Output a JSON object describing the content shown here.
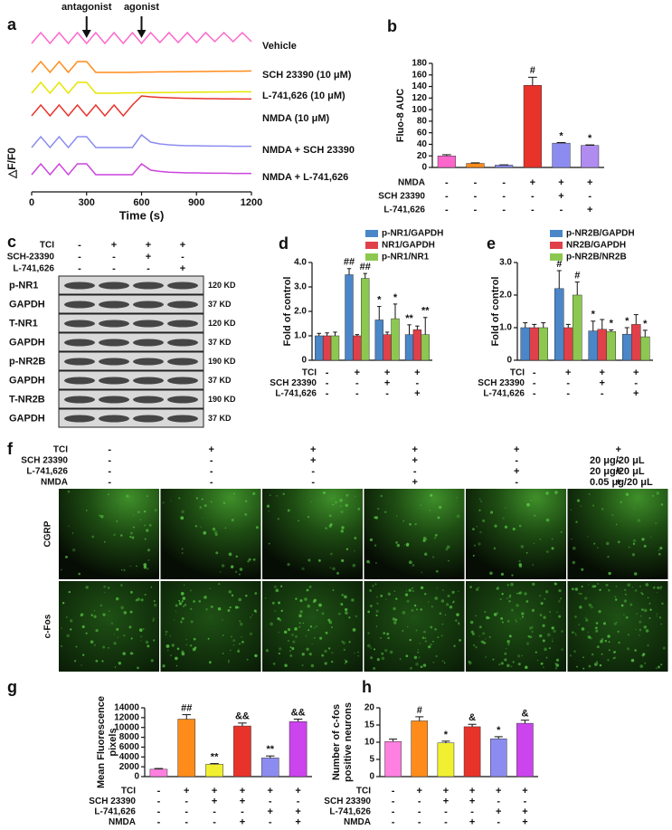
{
  "chart_data": [
    {
      "type": "line",
      "panel": "a",
      "x_label": "Time (s)",
      "y_label": "△F/F0",
      "xlim": [
        0,
        1200
      ],
      "xticks": [
        0,
        300,
        600,
        900,
        1200
      ],
      "arrows": [
        {
          "label": "antagonist",
          "x": 300
        },
        {
          "label": "agonist",
          "x": 600
        }
      ],
      "x": [
        0,
        50,
        100,
        150,
        200,
        250,
        300,
        350,
        400,
        450,
        500,
        550,
        600,
        650,
        700,
        750,
        800,
        850,
        900,
        950,
        1000,
        1050,
        1100,
        1150,
        1200
      ],
      "series": [
        {
          "name": "Vehicle",
          "color": "#ff66cc",
          "values": [
            0,
            0.6,
            0,
            0.6,
            0,
            0.6,
            0,
            0.6,
            0,
            0.6,
            0,
            0.6,
            0,
            0.6,
            0.05,
            0.6,
            0.05,
            0.6,
            0.05,
            0.6,
            0.1,
            0.6,
            0.1,
            0.6,
            0.1
          ]
        },
        {
          "name": "SCH 23390 (10 μM)",
          "color": "#ff8c1a",
          "values": [
            0,
            0.6,
            0,
            0.6,
            0,
            0.6,
            0.6,
            0,
            0,
            0,
            0,
            0,
            0.02,
            0.02,
            0.03,
            0.03,
            0.04,
            0.04,
            0.05,
            0.05,
            0.06,
            0.06,
            0.07,
            0.07,
            0.08
          ]
        },
        {
          "name": "L-741,626 (10 μM)",
          "color": "#e6e600",
          "values": [
            0,
            0.6,
            0,
            0.6,
            0,
            0.6,
            0.6,
            0,
            0,
            0,
            0.02,
            0.02,
            0.03,
            0.03,
            0.04,
            0.04,
            0.05,
            0.05,
            0.06,
            0.06,
            0.07,
            0.07,
            0.08,
            0.08,
            0.08
          ]
        },
        {
          "name": "NMDA (10 μM)",
          "color": "#e8332a",
          "values": [
            0,
            0.6,
            0,
            0.6,
            0,
            0.6,
            0,
            0.6,
            0,
            0.6,
            0,
            0.6,
            1.1,
            1.05,
            1.02,
            1.0,
            0.98,
            0.97,
            0.96,
            0.95,
            0.95,
            0.94,
            0.94,
            0.93,
            0.93
          ]
        },
        {
          "name": "NMDA + SCH 23390",
          "color": "#8c8cf0",
          "values": [
            0,
            0.6,
            0,
            0.6,
            0,
            0.6,
            0.6,
            0,
            0,
            0,
            0,
            0,
            0.7,
            0.3,
            0.2,
            0.15,
            0.12,
            0.1,
            0.1,
            0.09,
            0.08,
            0.08,
            0.07,
            0.07,
            0.07
          ]
        },
        {
          "name": "NMDA + L-741,626",
          "color": "#cc44dd",
          "values": [
            0,
            0.6,
            0,
            0.6,
            0,
            0.6,
            0.6,
            0,
            0,
            0,
            0,
            0,
            0.6,
            0.25,
            0.18,
            0.14,
            0.12,
            0.1,
            0.1,
            0.09,
            0.08,
            0.08,
            0.07,
            0.07,
            0.07
          ]
        }
      ]
    },
    {
      "type": "bar",
      "panel": "b",
      "y_label": "Fluo-8 AUC",
      "ylim": [
        0,
        180
      ],
      "yticks": [
        0,
        20,
        40,
        60,
        80,
        100,
        120,
        140,
        160,
        180
      ],
      "values": [
        20,
        7,
        4,
        142,
        42,
        38
      ],
      "errors": [
        2,
        1,
        0.5,
        14,
        1,
        1
      ],
      "annotations": [
        null,
        null,
        null,
        "#",
        "*",
        "*"
      ],
      "colors": [
        "#ff66cc",
        "#ff8c1a",
        "#8c8cf0",
        "#e8332a",
        "#8c8cf0",
        "#b08cf0"
      ],
      "conditions": [
        {
          "name": "NMDA",
          "values": [
            "-",
            "-",
            "-",
            "+",
            "+",
            "+"
          ]
        },
        {
          "name": "SCH 23390",
          "values": [
            "-",
            "-",
            "-",
            "-",
            "+",
            "-"
          ]
        },
        {
          "name": "L-741,626",
          "values": [
            "-",
            "-",
            "-",
            "-",
            "-",
            "+"
          ]
        }
      ]
    },
    {
      "type": "blot",
      "panel": "c",
      "conditions": [
        {
          "name": "TCI",
          "values": [
            "-",
            "+",
            "+",
            "+"
          ]
        },
        {
          "name": "SCH-23390",
          "values": [
            "-",
            "-",
            "+",
            "-"
          ]
        },
        {
          "name": "L-741,626",
          "values": [
            "-",
            "-",
            "-",
            "+"
          ]
        }
      ],
      "rows": [
        {
          "name": "p-NR1",
          "size": "120 KD"
        },
        {
          "name": "GAPDH",
          "size": "37 KD"
        },
        {
          "name": "T-NR1",
          "size": "120 KD"
        },
        {
          "name": "GAPDH",
          "size": "37 KD"
        },
        {
          "name": "p-NR2B",
          "size": "190 KD"
        },
        {
          "name": "GAPDH",
          "size": "37 KD"
        },
        {
          "name": "T-NR2B",
          "size": "190 KD"
        },
        {
          "name": "GAPDH",
          "size": "37 KD"
        }
      ]
    },
    {
      "type": "bar",
      "panel": "d",
      "y_label": "Fold of control",
      "ylim": [
        0,
        4
      ],
      "yticks": [
        0,
        {
          "value": 1,
          "label": "1.0"
        },
        {
          "value": 2,
          "label": "2.0"
        },
        {
          "value": 3,
          "label": "3.0"
        },
        {
          "value": 4,
          "label": "4.0"
        }
      ],
      "series": [
        {
          "name": "p-NR1/GAPDH",
          "color": "#4a86c8",
          "values": [
            1.0,
            3.5,
            1.65,
            1.05
          ],
          "errors": [
            0.1,
            0.25,
            0.55,
            0.4
          ],
          "annotations": [
            null,
            "##",
            "*",
            "**"
          ]
        },
        {
          "name": "NR1/GAPDH",
          "color": "#e0404a",
          "values": [
            1.0,
            1.0,
            1.05,
            1.25
          ],
          "errors": [
            0.12,
            0.05,
            0.1,
            0.15
          ],
          "annotations": [
            null,
            null,
            null,
            null
          ]
        },
        {
          "name": "p-NR1/NR1",
          "color": "#8cc850",
          "values": [
            1.0,
            3.35,
            1.7,
            1.05
          ],
          "errors": [
            0.15,
            0.2,
            0.6,
            0.7
          ],
          "annotations": [
            null,
            "##",
            "*",
            "**"
          ]
        }
      ],
      "conditions": [
        {
          "name": "TCI",
          "values": [
            "-",
            "+",
            "+",
            "+"
          ]
        },
        {
          "name": "SCH 23390",
          "values": [
            "-",
            "-",
            "+",
            "-"
          ]
        },
        {
          "name": "L-741,626",
          "values": [
            "-",
            "-",
            "-",
            "+"
          ]
        }
      ]
    },
    {
      "type": "bar",
      "panel": "e",
      "y_label": "Fold of control",
      "ylim": [
        0,
        3
      ],
      "yticks": [
        0,
        {
          "value": 1,
          "label": "1.0"
        },
        {
          "value": 2,
          "label": "2.0"
        },
        {
          "value": 3,
          "label": "3.0"
        }
      ],
      "series": [
        {
          "name": "p-NR2B/GAPDH",
          "color": "#4a86c8",
          "values": [
            1.0,
            2.2,
            0.9,
            0.8
          ],
          "errors": [
            0.15,
            0.55,
            0.3,
            0.2
          ],
          "annotations": [
            null,
            "#",
            "*",
            "*"
          ]
        },
        {
          "name": "NR2B/GAPDH",
          "color": "#e0404a",
          "values": [
            1.0,
            1.0,
            0.95,
            1.1
          ],
          "errors": [
            0.1,
            0.1,
            0.3,
            0.3
          ],
          "annotations": [
            null,
            null,
            null,
            null
          ]
        },
        {
          "name": "p-NR2B/NR2B",
          "color": "#8cc850",
          "values": [
            1.0,
            2.0,
            0.88,
            0.72
          ],
          "errors": [
            0.15,
            0.4,
            0.05,
            0.2
          ],
          "annotations": [
            null,
            "#",
            "*",
            "*"
          ]
        }
      ],
      "conditions": [
        {
          "name": "TCI",
          "values": [
            "-",
            "+",
            "+",
            "+"
          ]
        },
        {
          "name": "SCH 23390",
          "values": [
            "-",
            "-",
            "+",
            "-"
          ]
        },
        {
          "name": "L-741,626",
          "values": [
            "-",
            "-",
            "-",
            "+"
          ]
        }
      ]
    },
    {
      "type": "image",
      "panel": "f",
      "conditions": [
        {
          "name": "TCI",
          "values": [
            "-",
            "+",
            "+",
            "+",
            "+",
            "+"
          ]
        },
        {
          "name": "SCH 23390",
          "values": [
            "-",
            "-",
            "+",
            "+",
            "-",
            "-"
          ]
        },
        {
          "name": "L-741,626",
          "values": [
            "-",
            "-",
            "-",
            "-",
            "+",
            "+"
          ]
        },
        {
          "name": "NMDA",
          "values": [
            "-",
            "-",
            "-",
            "+",
            "-",
            "+"
          ]
        }
      ],
      "doses": [
        "20 μg/20 μL",
        "20 μg/20 μL",
        "0.05 μg/20 μL"
      ],
      "rows": [
        "CGRP",
        "c-Fos"
      ]
    },
    {
      "type": "bar",
      "panel": "g",
      "y_label": [
        "Mean Fluorescence",
        "pixels"
      ],
      "ylim": [
        0,
        14000
      ],
      "yticks": [
        0,
        2000,
        4000,
        6000,
        8000,
        10000,
        12000,
        14000
      ],
      "values": [
        1500,
        11700,
        2500,
        10300,
        3800,
        11200
      ],
      "errors": [
        150,
        900,
        150,
        600,
        400,
        500
      ],
      "annotations": [
        null,
        "##",
        "**",
        "&&",
        "**",
        "&&"
      ],
      "colors": [
        "#ff80e0",
        "#ff8c1a",
        "#f0f030",
        "#e8332a",
        "#8c8cf0",
        "#cc44ee"
      ],
      "conditions": [
        {
          "name": "TCI",
          "values": [
            "-",
            "+",
            "+",
            "+",
            "+",
            "+"
          ]
        },
        {
          "name": "SCH 23390",
          "values": [
            "-",
            "-",
            "+",
            "+",
            "-",
            "-"
          ]
        },
        {
          "name": "L-741,626",
          "values": [
            "-",
            "-",
            "-",
            "-",
            "+",
            "+"
          ]
        },
        {
          "name": "NMDA",
          "values": [
            "-",
            "-",
            "-",
            "+",
            "-",
            "+"
          ]
        }
      ]
    },
    {
      "type": "bar",
      "panel": "h",
      "y_label": [
        "Number of c-fos",
        "positive neurons"
      ],
      "ylim": [
        0,
        20
      ],
      "yticks": [
        0,
        5,
        10,
        15,
        20
      ],
      "values": [
        10.2,
        16.2,
        9.8,
        14.5,
        11,
        15.5
      ],
      "errors": [
        0.7,
        1.2,
        0.5,
        0.7,
        0.6,
        0.9
      ],
      "annotations": [
        null,
        "#",
        "*",
        "&",
        "*",
        "&"
      ],
      "colors": [
        "#ff80e0",
        "#ff8c1a",
        "#f0f030",
        "#e8332a",
        "#8c8cf0",
        "#cc44ee"
      ],
      "conditions": [
        {
          "name": "TCI",
          "values": [
            "-",
            "+",
            "+",
            "+",
            "+",
            "+"
          ]
        },
        {
          "name": "SCH 23390",
          "values": [
            "-",
            "-",
            "+",
            "+",
            "-",
            "-"
          ]
        },
        {
          "name": "L-741,626",
          "values": [
            "-",
            "-",
            "-",
            "-",
            "+",
            "+"
          ]
        },
        {
          "name": "NMDA",
          "values": [
            "-",
            "-",
            "-",
            "+",
            "-",
            "+"
          ]
        }
      ]
    }
  ]
}
